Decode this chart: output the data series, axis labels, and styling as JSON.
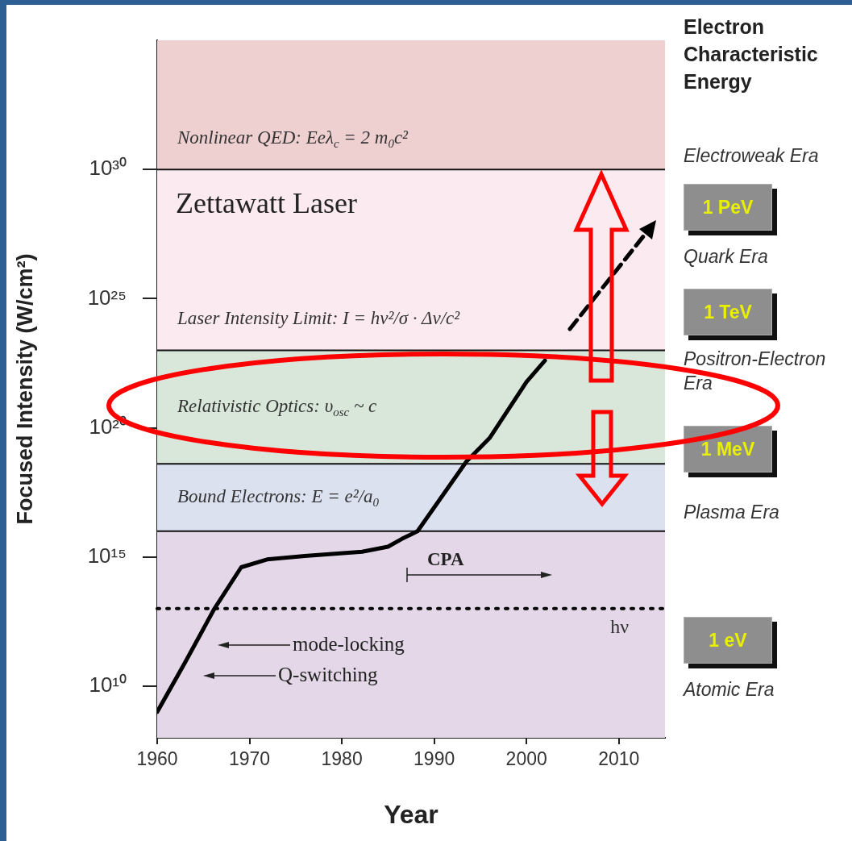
{
  "chart_data": {
    "type": "line",
    "xlabel": "Year",
    "ylabel": "Focused Intensity (W/cm²)",
    "xlim": [
      1960,
      2015
    ],
    "xticks": [
      1960,
      1970,
      1980,
      1990,
      2000,
      2010
    ],
    "ylim": [
      100000000.0,
      1e+35
    ],
    "yticks": [
      {
        "value": 10000000000.0,
        "label": "10¹⁰"
      },
      {
        "value": 1000000000000000.0,
        "label": "10¹⁵"
      },
      {
        "value": 1e+20,
        "label": "10²⁰"
      },
      {
        "value": 1e+25,
        "label": "10²⁵"
      },
      {
        "value": 1e+30,
        "label": "10³⁰"
      }
    ],
    "log": "y",
    "legend": false,
    "series": [
      {
        "color": "#000000",
        "x": [
          1960,
          1963,
          1966.2,
          1969.1,
          1971.9,
          1976,
          1982.2,
          1985,
          1986.5,
          1988.2,
          1993.5,
          1996,
          2000,
          2002
        ],
        "values": [
          1000000000.0,
          80000000000.0,
          10000000000000.0,
          400000000000000.0,
          800000000000000.0,
          1100000000000000.0,
          1600000000000000.0,
          2500000000000000.0,
          5000000000000000.0,
          1e+16,
          5e+18,
          4e+19,
          6e+21,
          4e+22
        ]
      }
    ],
    "bands": [
      {
        "axis": "y",
        "from": 1e+30,
        "to": 1e+35,
        "label": "Nonlinear QED: Eeλ$_{c}$ = 2 m$_{0}$c²",
        "color": "#efd0d1"
      },
      {
        "axis": "y",
        "from": 1e+23,
        "to": 1e+30,
        "label": "Laser Intensity Limit: I = hν²/σ · Δν/c²",
        "color": "#fbebf1"
      },
      {
        "axis": "y",
        "from": 4e+18,
        "to": 1e+23,
        "label": "Relativistic Optics: υ$_{osc}$ ~ c",
        "color": "#d9e7da"
      },
      {
        "axis": "y",
        "from": 1e+16,
        "to": 4e+18,
        "label": "Bound Electrons: E = e²/a$_{0}$",
        "color": "#dce1ef"
      },
      {
        "axis": "y",
        "from": 100000000.0,
        "to": 1e+16,
        "color": "#e3d7e8"
      }
    ],
    "ref_lines": [
      {
        "axis": "y",
        "value": 1e+30,
        "color": "#111111",
        "line_style": "solid"
      },
      {
        "axis": "y",
        "value": 1e+23,
        "color": "#111111",
        "line_style": "solid"
      },
      {
        "axis": "y",
        "value": 4e+18,
        "color": "#111111",
        "line_style": "solid"
      },
      {
        "axis": "y",
        "value": 1e+16,
        "color": "#111111",
        "line_style": "solid"
      },
      {
        "axis": "y",
        "value": 10000000000000.0,
        "label": "hν",
        "line_style": "dotted",
        "color": "#000000"
      }
    ],
    "annotations": [
      "Zettawatt Laser",
      "CPA",
      "mode-locking",
      "Q-switching",
      "Electron Characteristic Energy",
      "Electroweak Era",
      "1 PeV",
      "Quark Era",
      "1 TeV",
      "Positron-Electron Era",
      "1 MeV",
      "Plasma Era",
      "1 eV",
      "Atomic Era"
    ]
  }
}
